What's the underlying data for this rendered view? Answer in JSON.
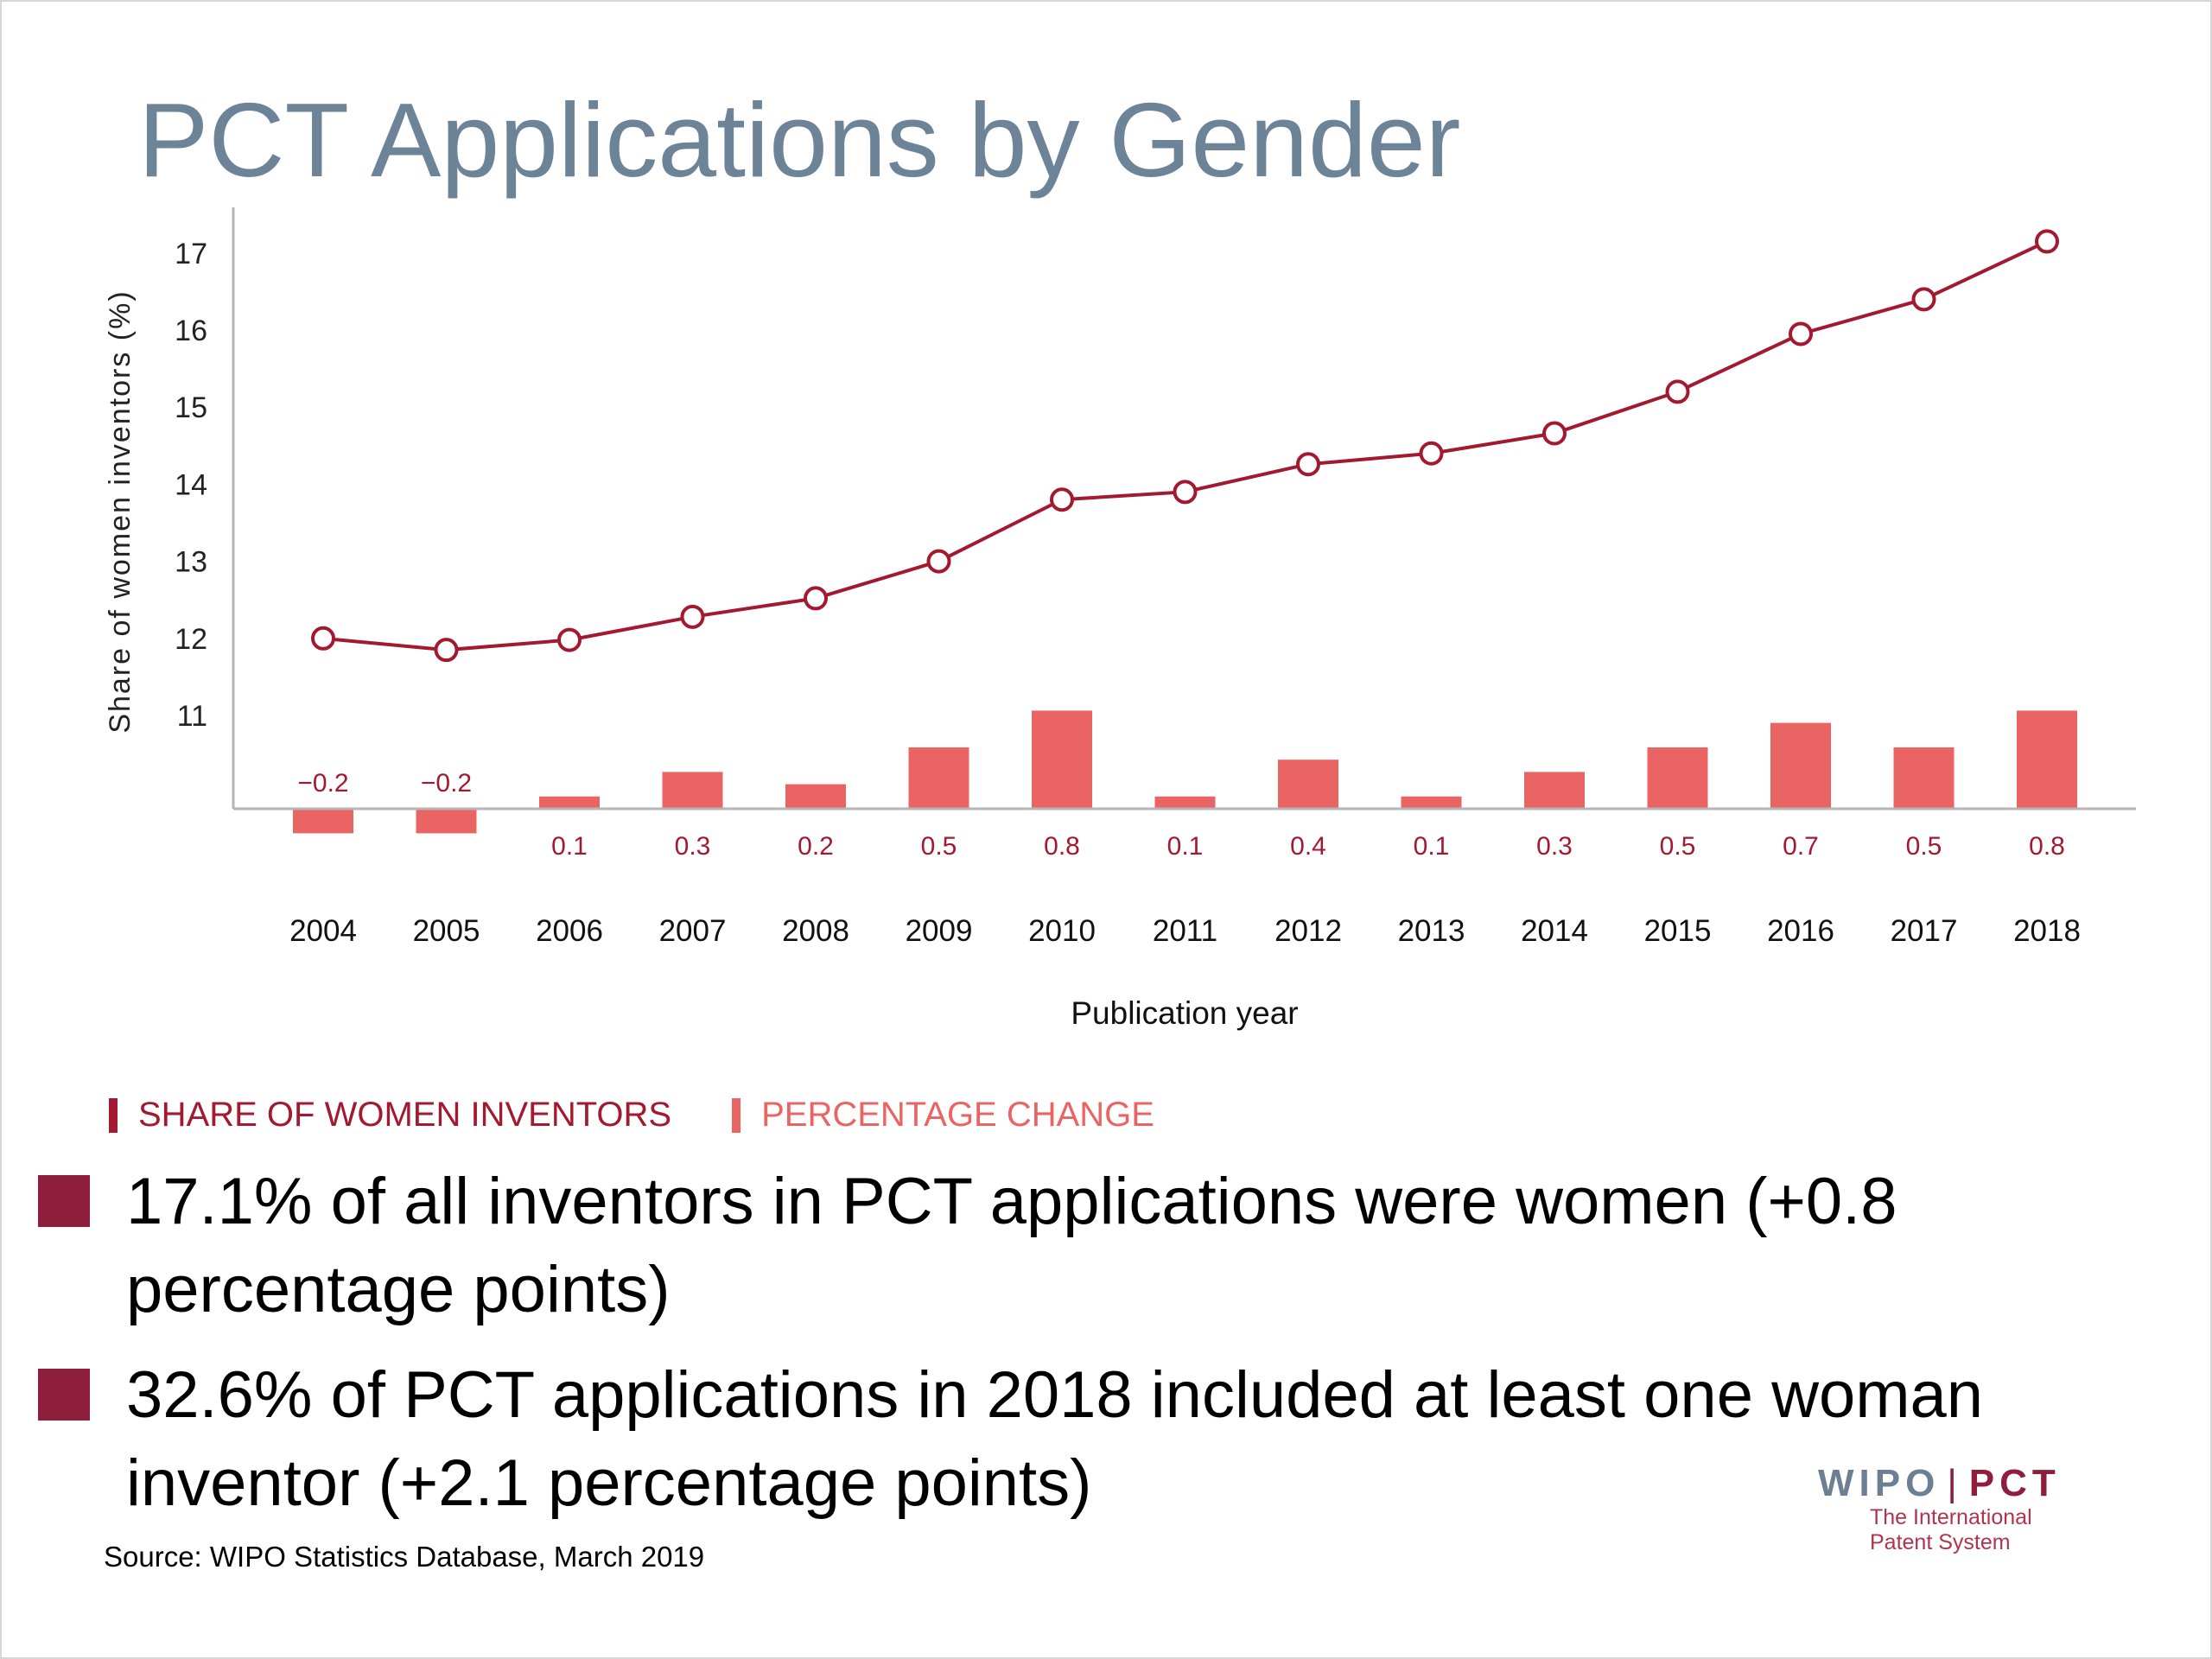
{
  "title": "PCT Applications by Gender",
  "legend": {
    "share_label": "SHARE OF WOMEN INVENTORS",
    "change_label": "PERCENTAGE CHANGE"
  },
  "bullets": [
    "17.1% of all inventors in PCT applications were women (+0.8 percentage points)",
    "32.6% of PCT applications in 2018 included at least one woman inventor (+2.1 percentage points)"
  ],
  "source": "Source:  WIPO Statistics Database, March 2019",
  "logo": {
    "wipo": "WIPO",
    "separator": "|",
    "pct": "PCT",
    "tagline_1": "The International",
    "tagline_2": "Patent System"
  },
  "colors": {
    "line": "#a3192f",
    "bar": "#ea6464",
    "title": "#6d8398",
    "bullet": "#8f1d3c",
    "legend_share": "#a3192f",
    "legend_change": "#ea6464"
  },
  "chart_data": {
    "type": "line+bar",
    "xlabel": "Publication year",
    "ylabel": "Share of women inventors (%)",
    "ylim": [
      10,
      17.5
    ],
    "yticks": [
      11,
      12,
      13,
      14,
      15,
      16,
      17
    ],
    "categories": [
      "2004",
      "2005",
      "2006",
      "2007",
      "2008",
      "2009",
      "2010",
      "2011",
      "2012",
      "2013",
      "2014",
      "2015",
      "2016",
      "2017",
      "2018"
    ],
    "series": [
      {
        "name": "SHARE OF WOMEN INVENTORS",
        "kind": "line",
        "values": [
          12.0,
          11.85,
          11.98,
          12.28,
          12.52,
          13.0,
          13.8,
          13.9,
          14.26,
          14.4,
          14.66,
          15.2,
          15.95,
          16.4,
          17.15
        ]
      },
      {
        "name": "PERCENTAGE CHANGE",
        "kind": "bar",
        "values": [
          -0.2,
          -0.2,
          0.1,
          0.3,
          0.2,
          0.5,
          0.8,
          0.1,
          0.4,
          0.1,
          0.3,
          0.5,
          0.7,
          0.5,
          0.8
        ],
        "labels": [
          "−0.2",
          "−0.2",
          "0.1",
          "0.3",
          "0.2",
          "0.5",
          "0.8",
          "0.1",
          "0.4",
          "0.1",
          "0.3",
          "0.5",
          "0.7",
          "0.5",
          "0.8"
        ]
      }
    ]
  }
}
